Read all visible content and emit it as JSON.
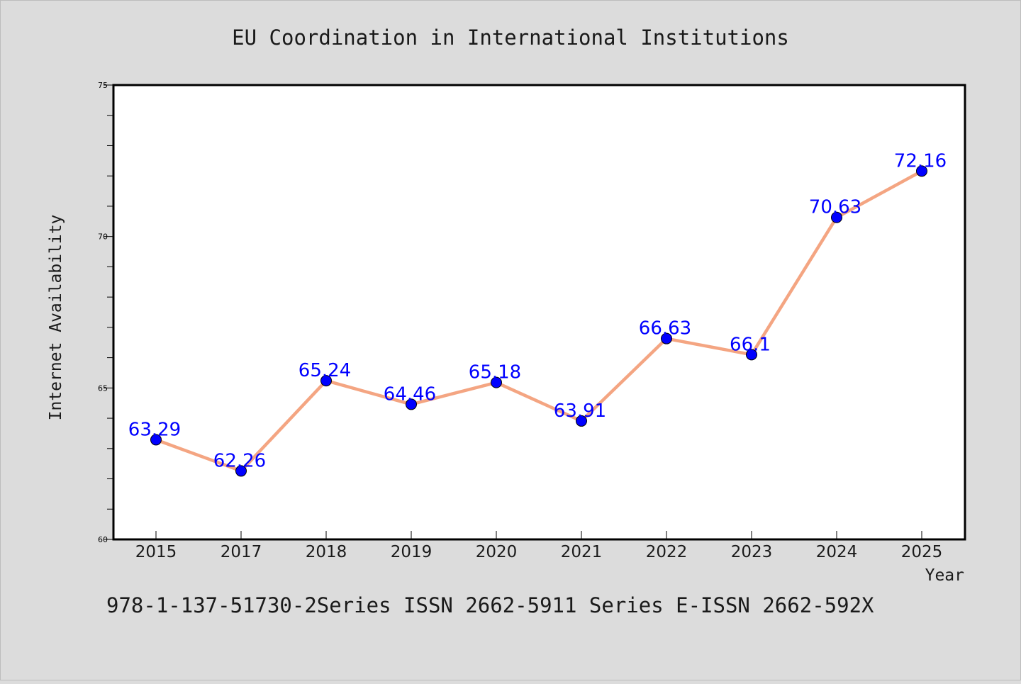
{
  "chart_data": {
    "type": "line",
    "title": "EU Coordination in International Institutions",
    "xlabel": "Year",
    "ylabel": "Internet Availability",
    "categories": [
      "2015",
      "2017",
      "2018",
      "2019",
      "2020",
      "2021",
      "2022",
      "2023",
      "2024",
      "2025"
    ],
    "series": [
      {
        "values": [
          63.29,
          62.26,
          65.24,
          64.46,
          65.18,
          63.91,
          66.63,
          66.1,
          70.63,
          72.16
        ],
        "data_labels": [
          "63.29",
          "62.26",
          "65.24",
          "64.46",
          "65.18",
          "63.91",
          "66.63",
          "66.1",
          "70.63",
          "72.16"
        ],
        "line_color": "#f4a582",
        "marker_color": "#0000ff",
        "label_color": "#0000ff"
      }
    ],
    "ylim": [
      60,
      75
    ],
    "y_ticks": [
      "60",
      "65",
      "70",
      "75"
    ],
    "grid": false,
    "footnote": "978-1-137-51730-2Series ISSN 2662-5911 Series E-ISSN 2662-592X"
  }
}
